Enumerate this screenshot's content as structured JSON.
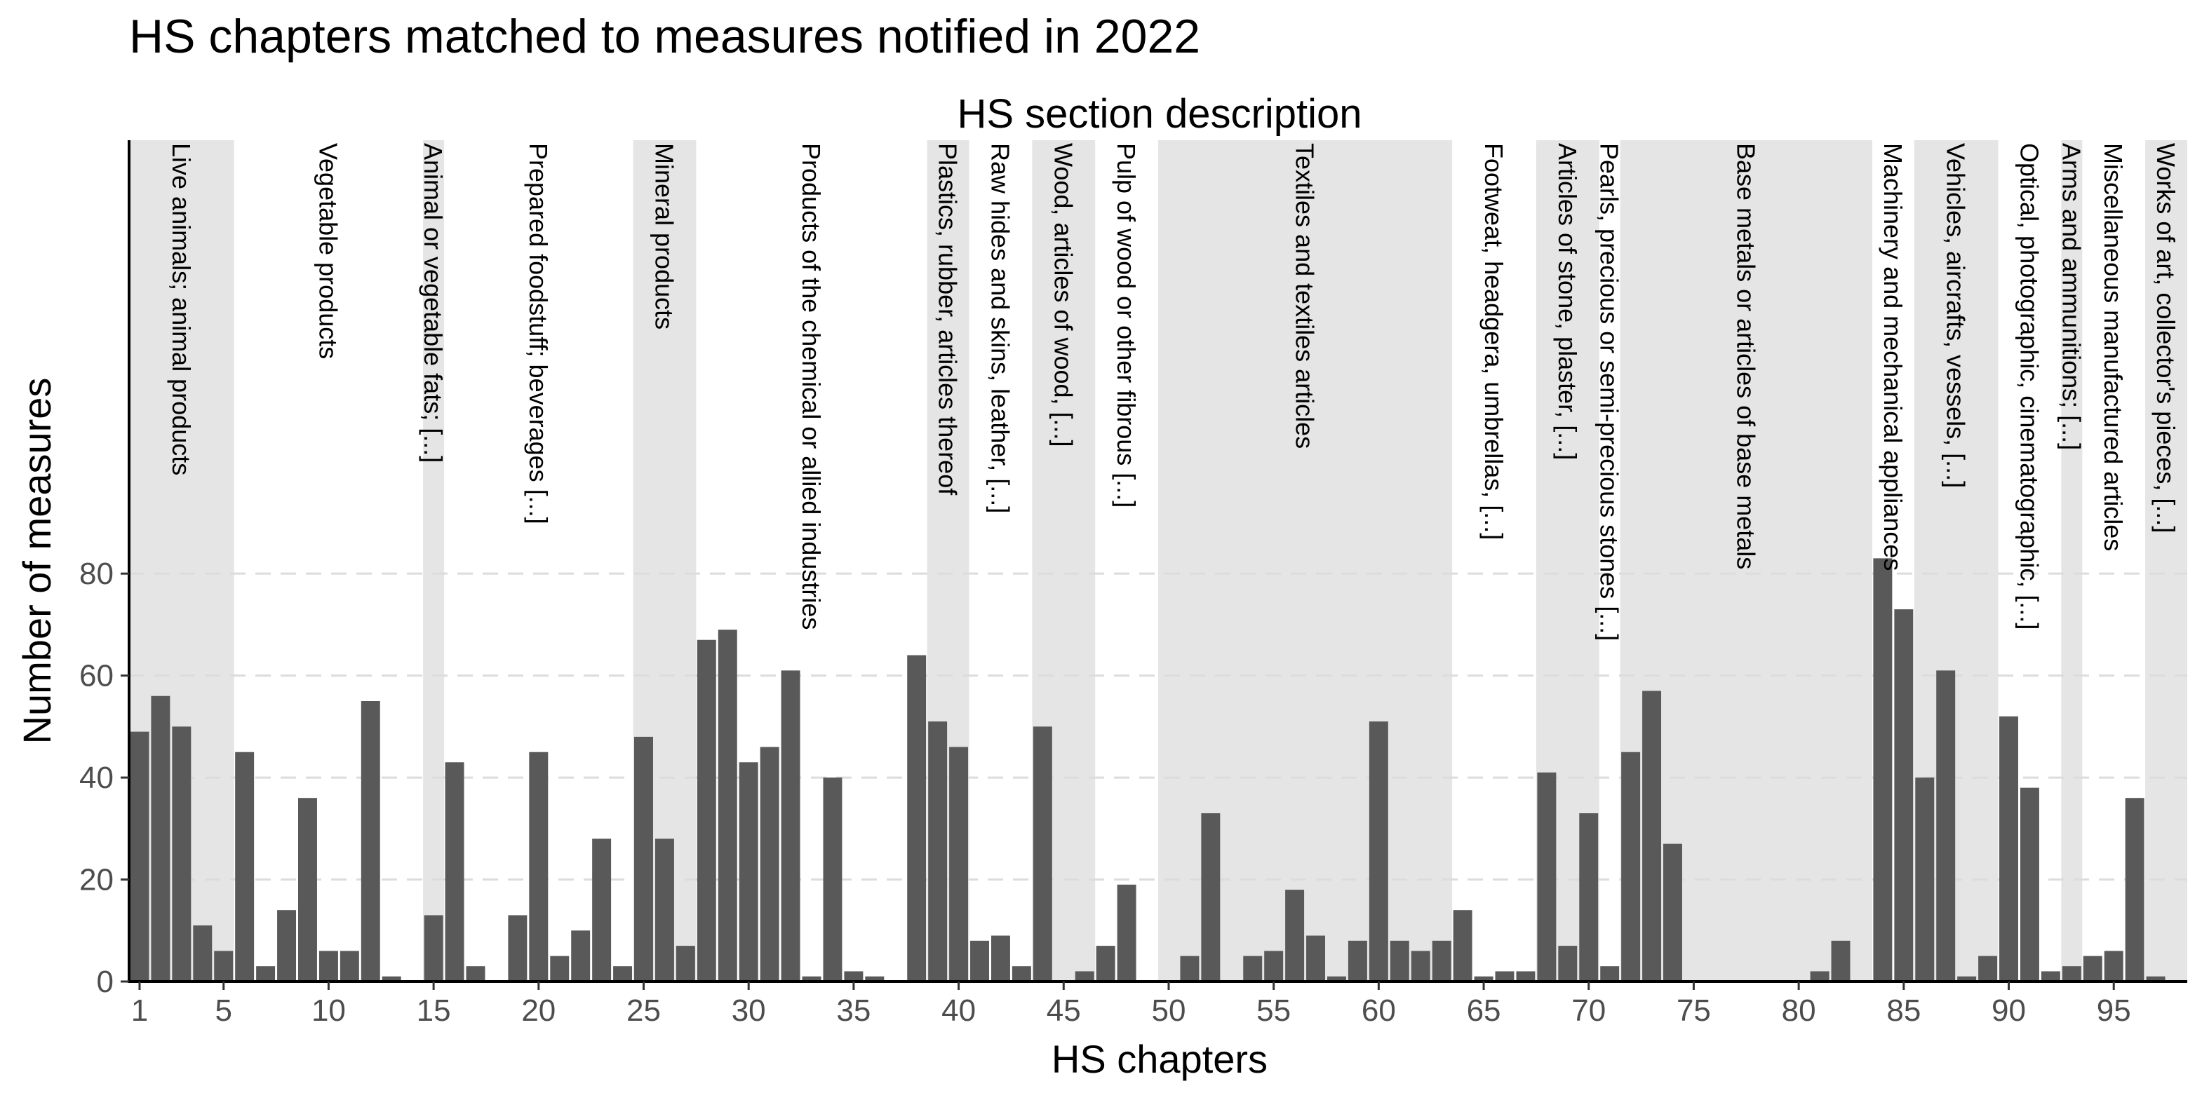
{
  "chart_data": {
    "type": "bar",
    "title": "HS chapters matched to measures notified in 2022",
    "secondary_title": "HS section description",
    "xlabel": "HS chapters",
    "ylabel": "Number of measures",
    "xlim": [
      0.5,
      98.5
    ],
    "ylim": [
      0,
      165
    ],
    "x_ticks": [
      1,
      5,
      10,
      15,
      20,
      25,
      30,
      35,
      40,
      45,
      50,
      55,
      60,
      65,
      70,
      75,
      80,
      85,
      90,
      95
    ],
    "y_ticks": [
      0,
      20,
      40,
      60,
      80
    ],
    "grid": "horizontal dashed",
    "colors": {
      "bar": "#595959",
      "band": "#e5e5e5",
      "grid": "#dcdcdc",
      "text": "#000000",
      "tick_text": "#4d4d4d"
    },
    "x": [
      1,
      2,
      3,
      4,
      5,
      6,
      7,
      8,
      9,
      10,
      11,
      12,
      13,
      14,
      15,
      16,
      17,
      18,
      19,
      20,
      21,
      22,
      23,
      24,
      25,
      26,
      27,
      28,
      29,
      30,
      31,
      32,
      33,
      34,
      35,
      36,
      37,
      38,
      39,
      40,
      41,
      42,
      43,
      44,
      45,
      46,
      47,
      48,
      49,
      50,
      51,
      52,
      53,
      54,
      55,
      56,
      57,
      58,
      59,
      60,
      61,
      62,
      63,
      64,
      65,
      66,
      67,
      68,
      69,
      70,
      71,
      72,
      73,
      74,
      75,
      76,
      77,
      78,
      79,
      80,
      81,
      82,
      83,
      84,
      85,
      86,
      87,
      88,
      89,
      90,
      91,
      92,
      93,
      94,
      95,
      96,
      97
    ],
    "values": [
      49,
      56,
      50,
      11,
      6,
      45,
      3,
      14,
      36,
      6,
      6,
      55,
      1,
      0,
      13,
      43,
      3,
      0,
      13,
      45,
      5,
      10,
      28,
      3,
      48,
      28,
      7,
      67,
      69,
      43,
      46,
      61,
      1,
      40,
      2,
      1,
      0,
      64,
      51,
      46,
      8,
      9,
      3,
      50,
      0,
      2,
      7,
      19,
      0,
      0,
      5,
      33,
      0,
      5,
      6,
      18,
      9,
      1,
      8,
      51,
      8,
      6,
      8,
      14,
      1,
      2,
      2,
      41,
      7,
      33,
      3,
      45,
      57,
      27,
      0,
      0,
      0,
      0,
      0,
      0,
      2,
      8,
      0,
      83,
      73,
      40,
      61,
      1,
      5,
      52,
      38,
      2,
      3,
      5,
      6,
      36,
      1
    ],
    "sections": [
      {
        "label": "Live animals; animal products",
        "from": 1,
        "to": 5,
        "shaded": true
      },
      {
        "label": "Vegetable products",
        "from": 6,
        "to": 14,
        "shaded": false
      },
      {
        "label": "Animal or vegetable fats; [...]",
        "from": 15,
        "to": 15,
        "shaded": true
      },
      {
        "label": "Prepared foodstuff; beverages [...]",
        "from": 16,
        "to": 24,
        "shaded": false
      },
      {
        "label": "Mineral products",
        "from": 25,
        "to": 27,
        "shaded": true
      },
      {
        "label": "Products of the chemical or allied industries",
        "from": 28,
        "to": 38,
        "shaded": false
      },
      {
        "label": "Plastics, rubber, articles thereof",
        "from": 39,
        "to": 40,
        "shaded": true
      },
      {
        "label": "Raw hides and skins, leather, [...]",
        "from": 41,
        "to": 43,
        "shaded": false
      },
      {
        "label": "Wood, articles of wood, [...]",
        "from": 44,
        "to": 46,
        "shaded": true
      },
      {
        "label": "Pulp of wood or other fibrous [...]",
        "from": 47,
        "to": 49,
        "shaded": false
      },
      {
        "label": "Textiles and textiles articles",
        "from": 50,
        "to": 63,
        "shaded": true
      },
      {
        "label": "Footweat, headgera, umbrellas, [...]",
        "from": 64,
        "to": 67,
        "shaded": false
      },
      {
        "label": "Articles of stone, plaster, [...]",
        "from": 68,
        "to": 70,
        "shaded": true
      },
      {
        "label": "Pearls, precious or semi-precious stones [...]",
        "from": 71,
        "to": 71,
        "shaded": false
      },
      {
        "label": "Base metals or articles of base metals",
        "from": 72,
        "to": 83,
        "shaded": true
      },
      {
        "label": "Machinery and mechanical appliances",
        "from": 84,
        "to": 85,
        "shaded": false
      },
      {
        "label": "Vehicles, aircrafts, vessels, [...]",
        "from": 86,
        "to": 89,
        "shaded": true
      },
      {
        "label": "Optical, photographic, cinematographic, [...]",
        "from": 90,
        "to": 92,
        "shaded": false
      },
      {
        "label": "Arms and ammunitions; [...]",
        "from": 93,
        "to": 93,
        "shaded": true
      },
      {
        "label": "Miscellaneous manufactured articles",
        "from": 94,
        "to": 96,
        "shaded": false
      },
      {
        "label": "Works of art, collector's pieces, [...]",
        "from": 97,
        "to": 98,
        "shaded": true
      }
    ]
  }
}
